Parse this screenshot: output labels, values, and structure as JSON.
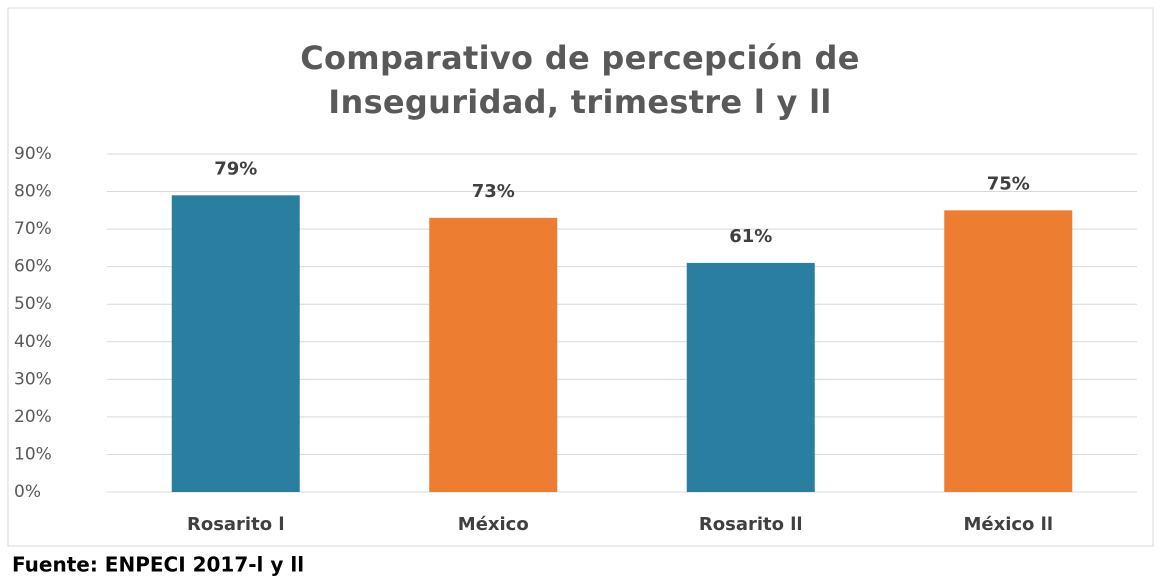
{
  "chart_data": {
    "type": "bar",
    "title": "Comparativo de percepción de Inseguridad, trimestre l y ll",
    "categories": [
      "Rosarito l",
      "México",
      "Rosarito ll",
      "México ll"
    ],
    "values": [
      79,
      73,
      61,
      75
    ],
    "value_labels": [
      "79%",
      "73%",
      "61%",
      "75%"
    ],
    "colors": [
      "#2a7fa0",
      "#ed7d31",
      "#2a7fa0",
      "#ed7d31"
    ],
    "ylim": [
      0,
      90
    ],
    "yticks": [
      {
        "value": 0,
        "label": "0%"
      },
      {
        "value": 10,
        "label": "10%"
      },
      {
        "value": 20,
        "label": "20%"
      },
      {
        "value": 30,
        "label": "30%"
      },
      {
        "value": 40,
        "label": "40%"
      },
      {
        "value": 50,
        "label": "50%"
      },
      {
        "value": 60,
        "label": "60%"
      },
      {
        "value": 70,
        "label": "70%"
      },
      {
        "value": 80,
        "label": "80%"
      },
      {
        "value": 90,
        "label": "90%"
      }
    ],
    "grid": true,
    "source": "Fuente: ENPECI 2017-l y ll"
  }
}
